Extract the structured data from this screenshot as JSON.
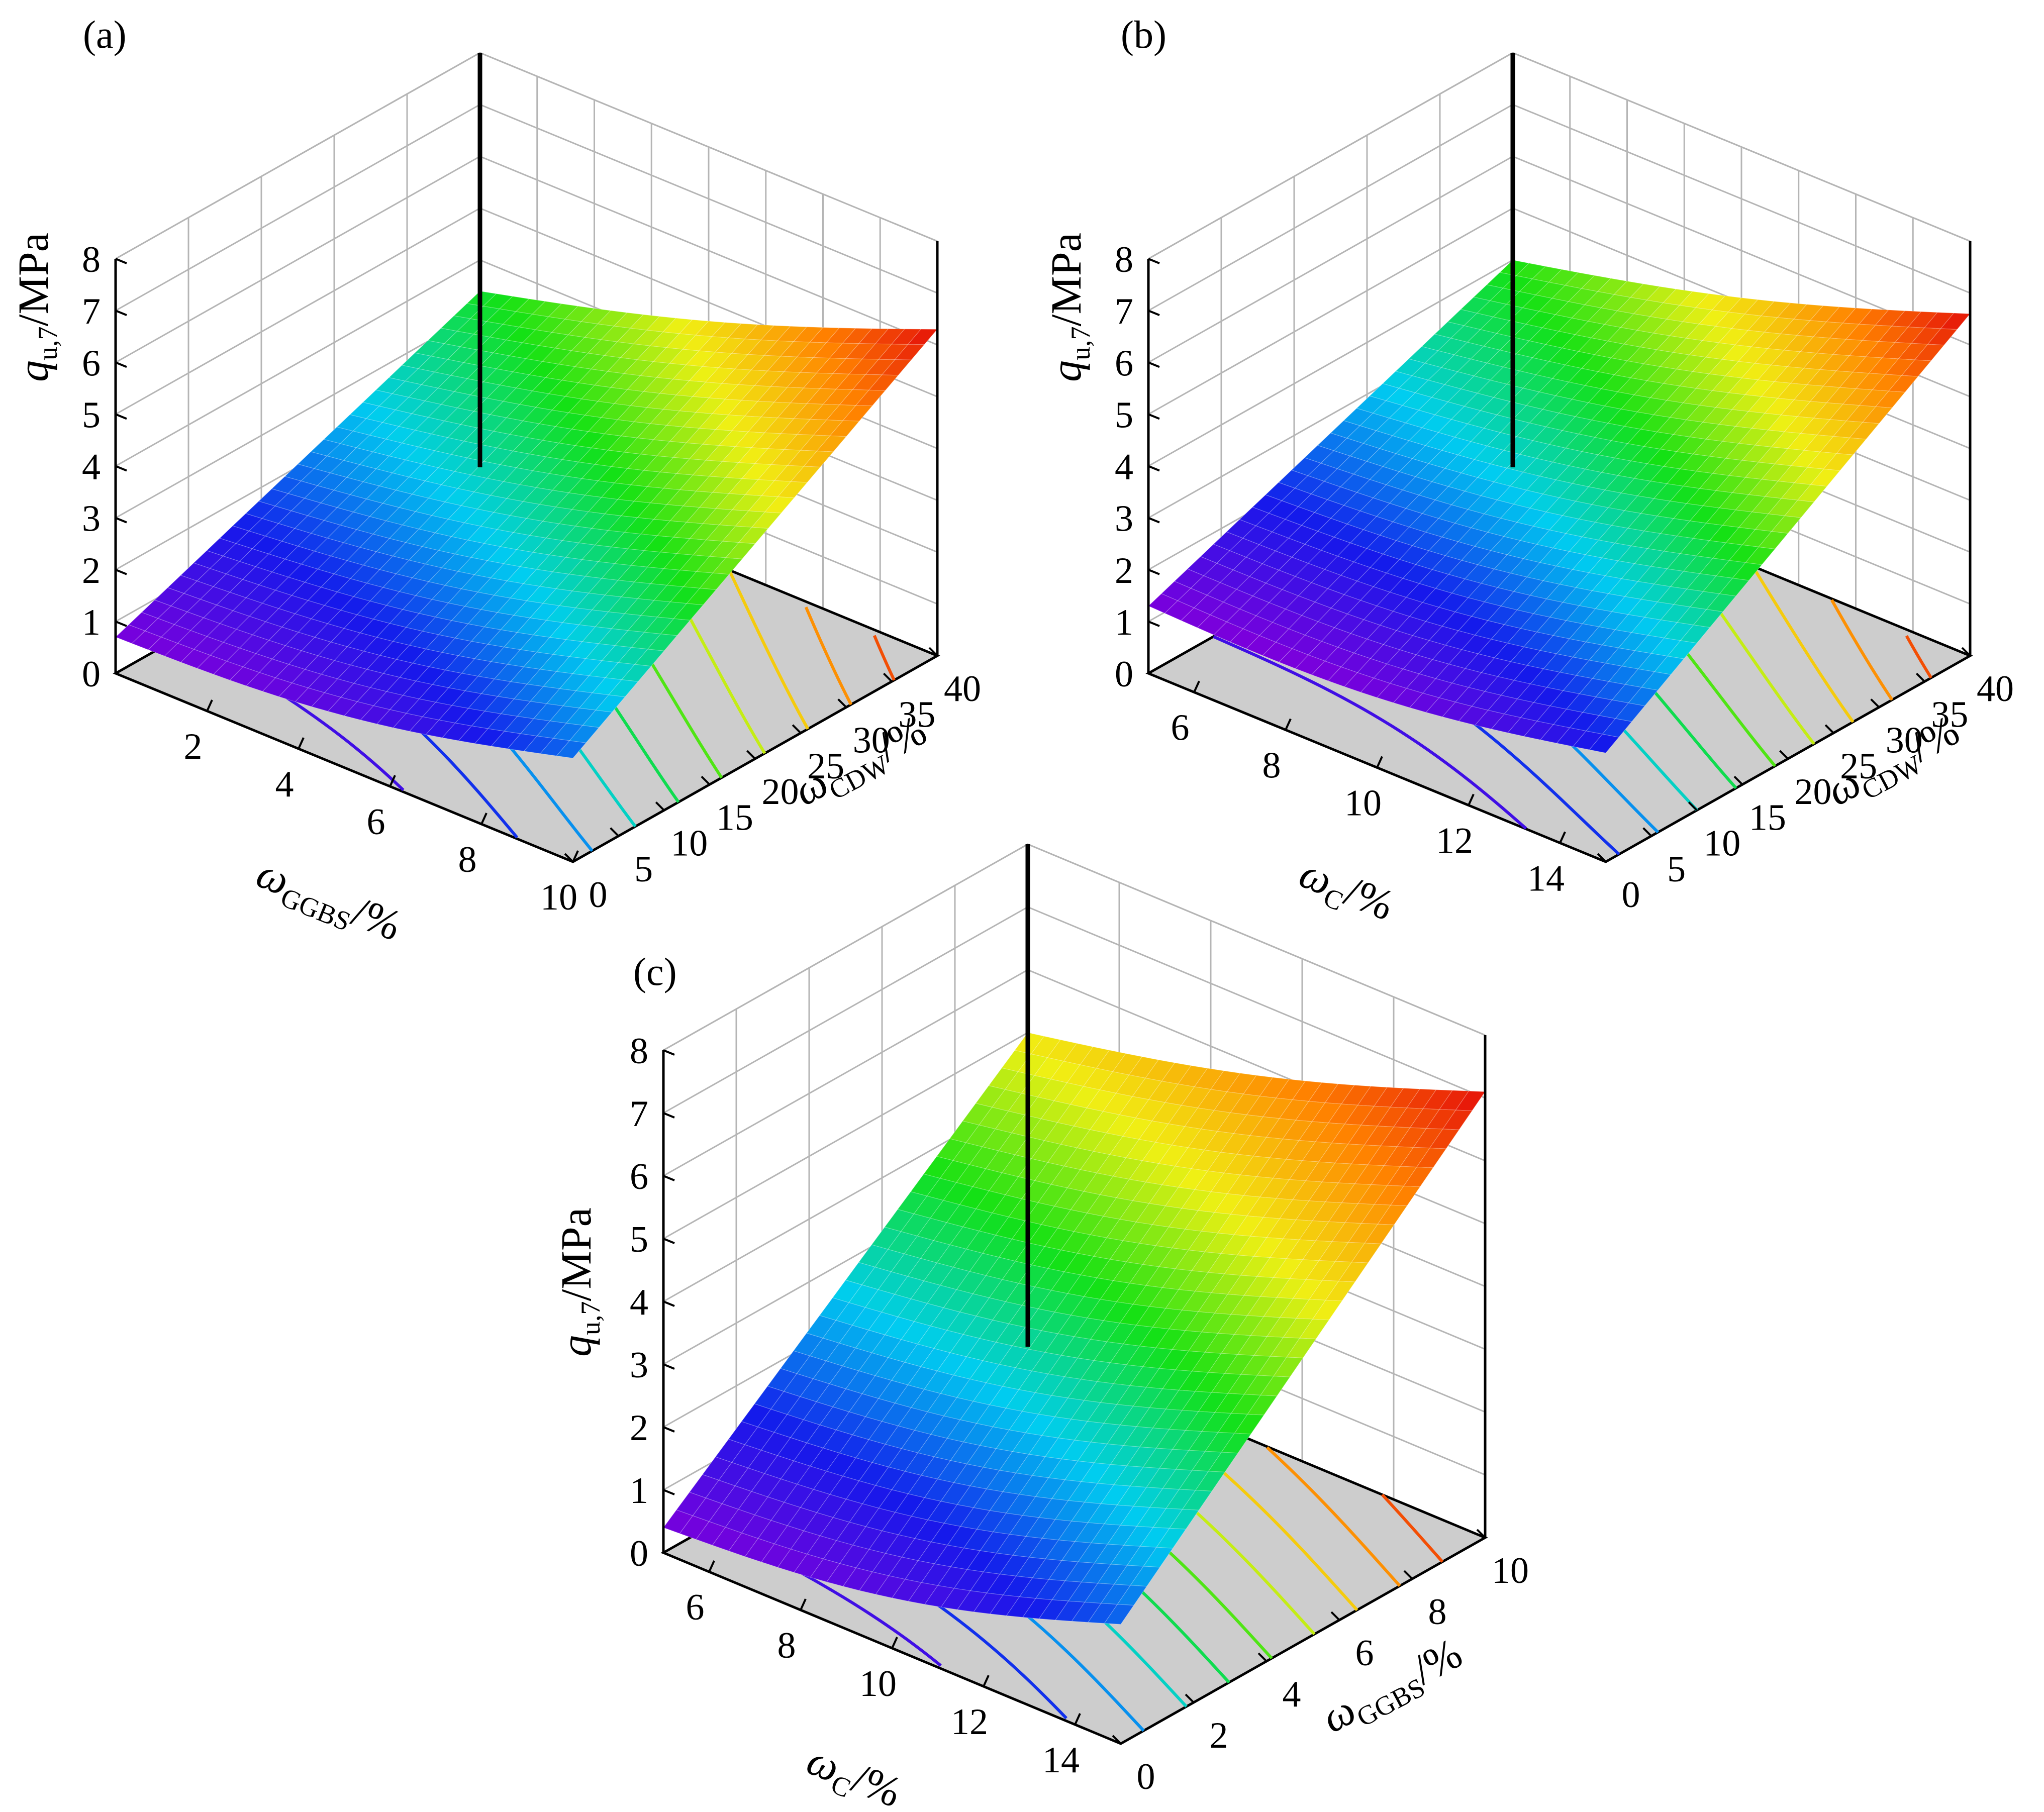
{
  "chart_data": [
    {
      "panel": "(a)",
      "type": "surface",
      "z_label": {
        "sym": "q",
        "sub": "u,7",
        "unit": "/MPa"
      },
      "x_label": {
        "sym": "ω",
        "sub": "GGBS",
        "unit": "/%"
      },
      "y_label": {
        "sym": "ω",
        "sub": "CDW",
        "unit": "/%"
      },
      "x_ticks": [
        "2",
        "4",
        "6",
        "8",
        "10"
      ],
      "y_ticks": [
        "0",
        "5",
        "10",
        "15",
        "20",
        "25",
        "30",
        "35",
        "40"
      ],
      "z_ticks": [
        "0",
        "1",
        "2",
        "3",
        "4",
        "5",
        "6",
        "7",
        "8"
      ],
      "xlim": [
        0,
        10
      ],
      "ylim": [
        0,
        40
      ],
      "zlim": [
        0,
        8
      ],
      "corners_z": {
        "x_min_y_min": 0.7,
        "x_max_y_min": 2.0,
        "x_min_y_max": 3.4,
        "x_max_y_max": 6.3
      },
      "colormap": "rainbow",
      "floor_contours": true
    },
    {
      "panel": "(b)",
      "type": "surface",
      "z_label": {
        "sym": "q",
        "sub": "u,7",
        "unit": "/MPa"
      },
      "x_label": {
        "sym": "ω",
        "sub": "C",
        "unit": "/%"
      },
      "y_label": {
        "sym": "ω",
        "sub": "CDW",
        "unit": "/%"
      },
      "x_ticks": [
        "6",
        "8",
        "10",
        "12",
        "14"
      ],
      "y_ticks": [
        "0",
        "5",
        "10",
        "15",
        "20",
        "25",
        "30",
        "35",
        "40"
      ],
      "z_ticks": [
        "0",
        "1",
        "2",
        "3",
        "4",
        "5",
        "6",
        "7",
        "8"
      ],
      "xlim": [
        5,
        15
      ],
      "ylim": [
        0,
        40
      ],
      "zlim": [
        0,
        8
      ],
      "corners_z": {
        "x_min_y_min": 1.3,
        "x_max_y_min": 2.1,
        "x_min_y_max": 4.0,
        "x_max_y_max": 6.6
      },
      "colormap": "rainbow",
      "floor_contours": true
    },
    {
      "panel": "(c)",
      "type": "surface",
      "z_label": {
        "sym": "q",
        "sub": "u,7",
        "unit": "/MPa"
      },
      "x_label": {
        "sym": "ω",
        "sub": "C",
        "unit": "/%"
      },
      "y_label": {
        "sym": "ω",
        "sub": "GGBS",
        "unit": "/%"
      },
      "x_ticks": [
        "6",
        "8",
        "10",
        "12",
        "14"
      ],
      "y_ticks": [
        "0",
        "2",
        "4",
        "6",
        "8",
        "10"
      ],
      "z_ticks": [
        "0",
        "1",
        "2",
        "3",
        "4",
        "5",
        "6",
        "7",
        "8"
      ],
      "xlim": [
        5,
        15
      ],
      "ylim": [
        0,
        10
      ],
      "zlim": [
        0,
        8
      ],
      "corners_z": {
        "x_min_y_min": 0.4,
        "x_max_y_min": 1.9,
        "x_min_y_max": 5.0,
        "x_max_y_max": 7.1
      },
      "colormap": "rainbow",
      "floor_contours": true
    }
  ]
}
